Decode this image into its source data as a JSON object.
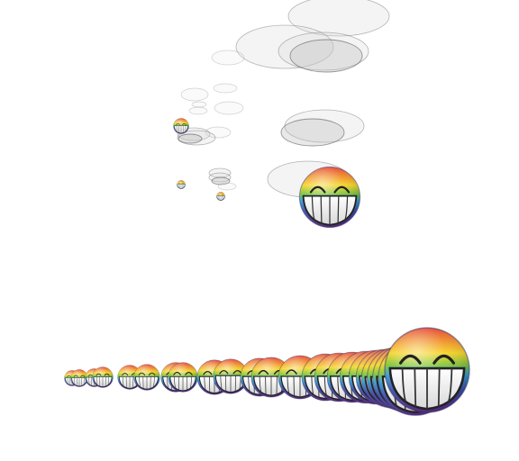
{
  "scene": {
    "background": "#ffffff",
    "sprite": "rainbow-grin-smiley-icon",
    "rainbow_colors": [
      "#e23a2a",
      "#f08a1e",
      "#f6d21b",
      "#7cc532",
      "#2f9bd6",
      "#3a4fb8",
      "#6b2f9a"
    ],
    "floating_group_smiley_count": 4,
    "row_smiley_count": 24
  }
}
